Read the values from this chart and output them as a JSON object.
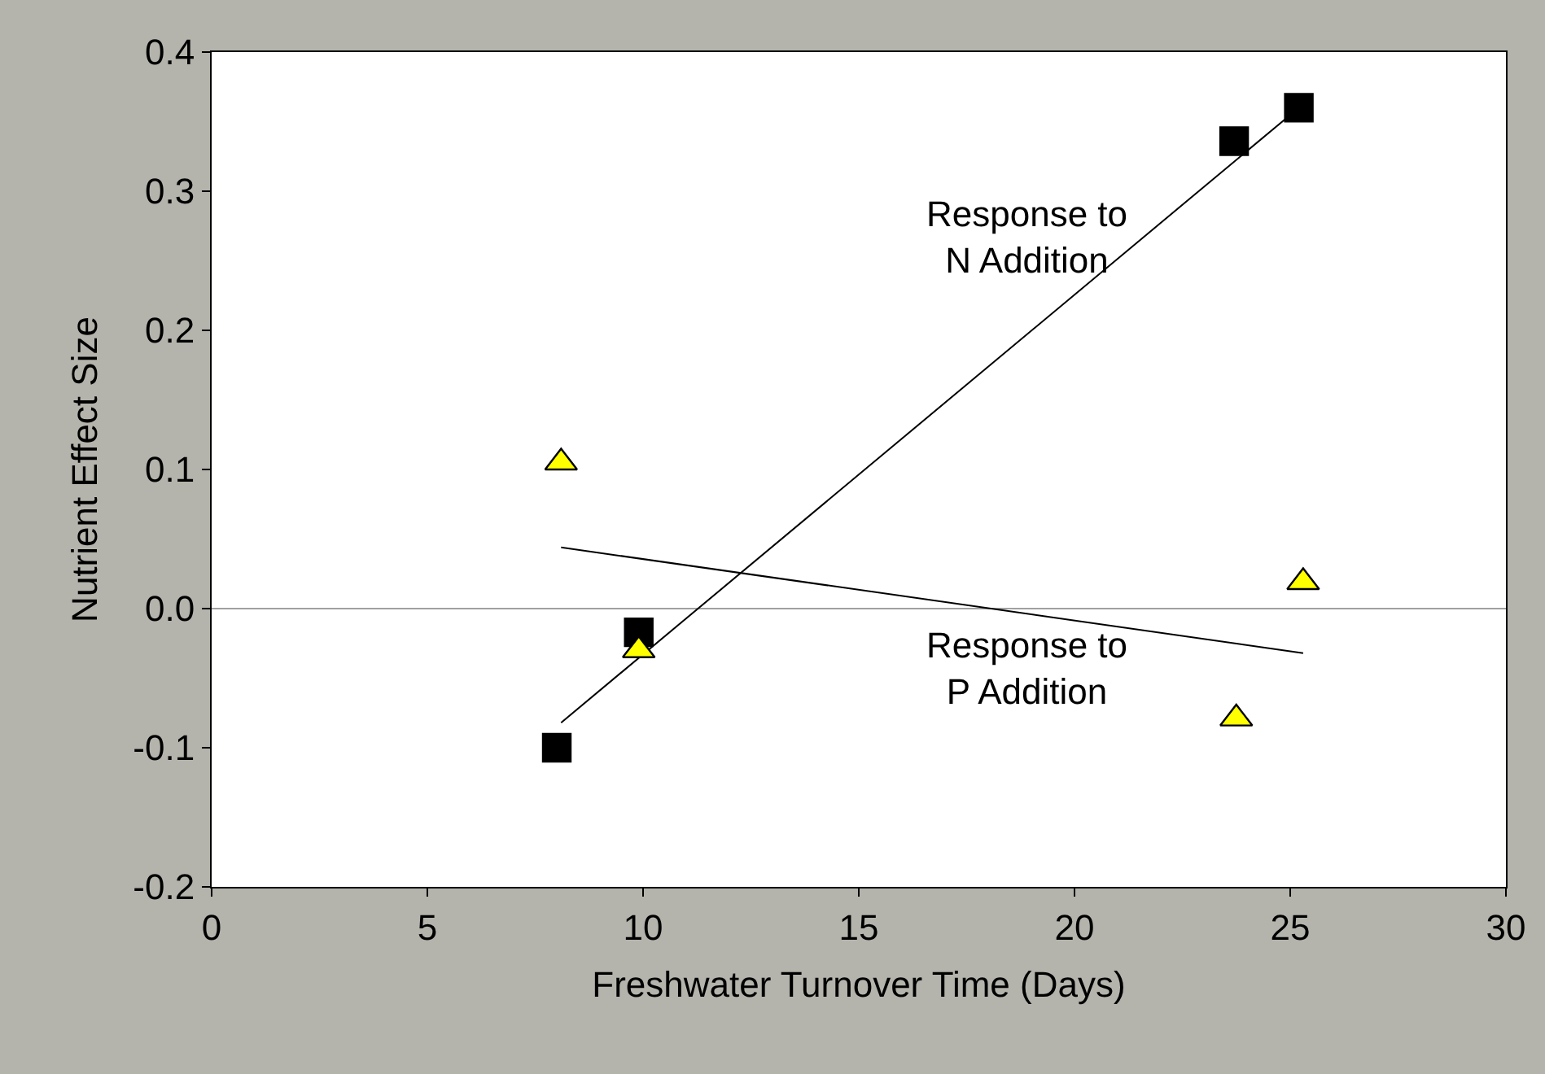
{
  "chart_data": {
    "type": "scatter",
    "xlabel": "Freshwater Turnover Time (Days)",
    "ylabel": "Nutrient Effect Size",
    "xlim": [
      0,
      30
    ],
    "xticks": [
      0,
      5,
      10,
      15,
      20,
      25,
      30
    ],
    "ylim": [
      -0.2,
      0.4
    ],
    "yticks": [
      {
        "value": -0.2,
        "label": "-0.2"
      },
      {
        "value": -0.1,
        "label": "-0.1"
      },
      {
        "value": 0,
        "label": "0.0"
      },
      {
        "value": 0.1,
        "label": "0.1"
      },
      {
        "value": 0.2,
        "label": "0.2"
      },
      {
        "value": 0.3,
        "label": "0.3"
      },
      {
        "value": 0.4,
        "label": "0.4"
      }
    ],
    "grid": false,
    "series": [
      {
        "type": "line",
        "color": "#000000",
        "x": [
          8.1,
          25.2
        ],
        "values": [
          -0.082,
          0.36
        ],
        "marker": "none"
      },
      {
        "type": "line",
        "color": "#000000",
        "x": [
          8.1,
          25.3
        ],
        "values": [
          0.044,
          -0.032
        ],
        "marker": "none"
      },
      {
        "color": "#000000",
        "x": [
          8.0,
          9.9,
          23.7,
          25.2
        ],
        "values": [
          -0.1,
          -0.017,
          0.336,
          0.36
        ],
        "marker": "square"
      },
      {
        "color": "#ffff00",
        "x": [
          8.1,
          9.9,
          23.75,
          25.3
        ],
        "values": [
          0.105,
          -0.03,
          -0.079,
          0.019
        ],
        "marker": "triangle"
      }
    ],
    "ref_lines": [
      {
        "axis": "y",
        "value": 0,
        "color": "#a0a0a0"
      }
    ],
    "annotations": [
      "Response to\nN Addition",
      "Response to\nP Addition"
    ]
  }
}
